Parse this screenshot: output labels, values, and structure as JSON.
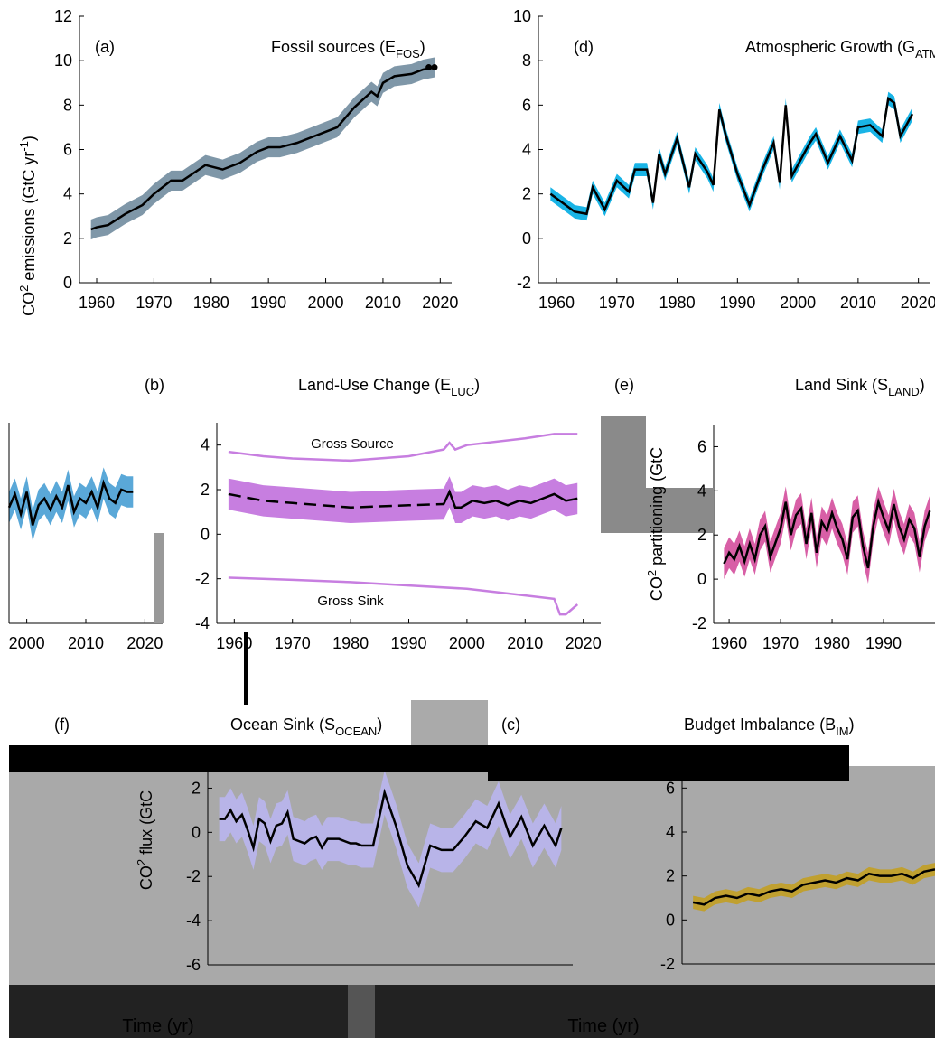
{
  "chart_data": [
    {
      "type": "line",
      "letter": "(a)",
      "title": [
        "Fossil sources (E",
        "FOS",
        ")"
      ],
      "ylabel": [
        "CO",
        "2",
        " emissions (GtC yr",
        "-1",
        ")"
      ],
      "xlim": [
        1957,
        2022
      ],
      "ylim": [
        0,
        12
      ],
      "xticks": [
        1960,
        1970,
        1980,
        1990,
        2000,
        2010,
        2020
      ],
      "yticks": [
        0,
        2,
        4,
        6,
        8,
        10,
        12
      ],
      "series": [
        {
          "color": "#000000",
          "band_color": "#7f97a8",
          "error": 0.45,
          "x": [
            1959,
            1960,
            1962,
            1965,
            1968,
            1970,
            1973,
            1975,
            1979,
            1982,
            1985,
            1988,
            1990,
            1992,
            1995,
            1998,
            2000,
            2002,
            2005,
            2008,
            2009,
            2010,
            2012,
            2015,
            2017,
            2019
          ],
          "values": [
            2.4,
            2.5,
            2.6,
            3.1,
            3.5,
            4.0,
            4.6,
            4.6,
            5.3,
            5.1,
            5.4,
            5.9,
            6.1,
            6.1,
            6.3,
            6.6,
            6.8,
            7.0,
            7.9,
            8.6,
            8.4,
            9.0,
            9.3,
            9.4,
            9.6,
            9.7
          ]
        },
        {
          "color": "#000000",
          "marker": true,
          "x": [
            2018,
            2019
          ],
          "values": [
            9.7,
            9.7
          ]
        }
      ]
    },
    {
      "type": "line",
      "letter": "(d)",
      "title": [
        "Atmospheric Growth (G",
        "ATM",
        ")"
      ],
      "xlim": [
        1957,
        2022
      ],
      "ylim": [
        -2,
        10
      ],
      "xticks": [
        1960,
        1970,
        1980,
        1990,
        2000,
        2010,
        2020
      ],
      "yticks": [
        -2,
        0,
        2,
        4,
        6,
        8,
        10
      ],
      "series": [
        {
          "color": "#000000",
          "band_color": "#19b4e6",
          "error": 0.3,
          "x": [
            1959,
            1961,
            1963,
            1965,
            1966,
            1968,
            1970,
            1972,
            1973,
            1975,
            1976,
            1977,
            1978,
            1980,
            1982,
            1983,
            1985,
            1986,
            1987,
            1988,
            1990,
            1992,
            1994,
            1996,
            1997,
            1998,
            1999,
            2001,
            2002,
            2003,
            2005,
            2007,
            2009,
            2010,
            2012,
            2014,
            2015,
            2016,
            2017,
            2019
          ],
          "values": [
            2.0,
            1.6,
            1.2,
            1.1,
            2.3,
            1.3,
            2.6,
            2.1,
            3.1,
            3.1,
            1.6,
            3.8,
            2.9,
            4.5,
            2.3,
            3.8,
            3.0,
            2.4,
            5.8,
            4.7,
            2.9,
            1.5,
            3.0,
            4.3,
            2.5,
            6.0,
            2.8,
            3.8,
            4.3,
            4.7,
            3.4,
            4.6,
            3.5,
            5.0,
            5.1,
            4.6,
            6.3,
            6.1,
            4.6,
            5.6
          ]
        }
      ]
    },
    {
      "type": "line",
      "letter": "(b)",
      "title": [
        "Land-Use Change (E",
        "LUC",
        ")"
      ],
      "xlim": [
        1997,
        2023
      ],
      "ylim": [
        -4,
        5
      ],
      "xticks": [
        2000,
        2010,
        2020
      ],
      "series": [
        {
          "color": "#000000",
          "band_color": "#5aa8d8",
          "error": 0.7,
          "x": [
            1997,
            1998,
            1999,
            2000,
            2001,
            2002,
            2003,
            2004,
            2005,
            2006,
            2007,
            2008,
            2009,
            2010,
            2011,
            2012,
            2013,
            2014,
            2015,
            2016,
            2017,
            2018
          ],
          "values": [
            1.2,
            1.8,
            0.9,
            1.9,
            0.4,
            1.3,
            1.6,
            1.1,
            1.7,
            1.2,
            2.2,
            1.0,
            1.6,
            1.4,
            1.9,
            1.2,
            2.3,
            1.6,
            1.4,
            2.0,
            1.9,
            1.9
          ]
        }
      ]
    },
    {
      "type": "line",
      "annotations": [
        "Gross Source",
        "Gross Sink"
      ],
      "xlim": [
        1957,
        2023
      ],
      "ylim": [
        -4,
        5
      ],
      "xticks": [
        1960,
        1970,
        1980,
        1990,
        2000,
        2010,
        2020
      ],
      "yticks": [
        -4,
        -2,
        0,
        2,
        4
      ],
      "series": [
        {
          "color": "#c77ee0",
          "x": [
            1959,
            1965,
            1970,
            1980,
            1990,
            1996,
            1997,
            1998,
            2000,
            2010,
            2015,
            2019
          ],
          "values": [
            3.7,
            3.5,
            3.4,
            3.3,
            3.5,
            3.8,
            4.1,
            3.8,
            4.0,
            4.3,
            4.5,
            4.5
          ]
        },
        {
          "color": "#000000",
          "dash": true,
          "band_color": "#c77ee0",
          "error": 0.7,
          "x": [
            1959,
            1965,
            1970,
            1980,
            1990,
            1996
          ],
          "values": [
            1.8,
            1.5,
            1.4,
            1.2,
            1.3,
            1.35
          ]
        },
        {
          "color": "#000000",
          "band_color": "#c77ee0",
          "error": 0.7,
          "x": [
            1996,
            1997,
            1998,
            1999,
            2001,
            2003,
            2005,
            2007,
            2009,
            2011,
            2013,
            2015,
            2017,
            2019
          ],
          "values": [
            1.35,
            1.9,
            1.2,
            1.2,
            1.5,
            1.4,
            1.5,
            1.3,
            1.5,
            1.4,
            1.6,
            1.8,
            1.5,
            1.6
          ]
        },
        {
          "color": "#c77ee0",
          "x": [
            1959,
            1970,
            1980,
            1990,
            2000,
            2010,
            2015,
            2016,
            2017,
            2019
          ],
          "values": [
            -1.95,
            -2.05,
            -2.15,
            -2.3,
            -2.45,
            -2.75,
            -2.9,
            -3.6,
            -3.6,
            -3.15
          ]
        }
      ]
    },
    {
      "type": "line",
      "letter": "(e)",
      "title": [
        "Land Sink (S",
        "LAND",
        ")"
      ],
      "ylabel": [
        "CO",
        "2",
        " partitioning (GtC"
      ],
      "xlim": [
        1957,
        2000
      ],
      "ylim": [
        -2,
        7
      ],
      "xticks": [
        1960,
        1970,
        1980,
        1990
      ],
      "yticks": [
        -2,
        0,
        2,
        4,
        6
      ],
      "series": [
        {
          "color": "#000000",
          "band_color": "#d85fa6",
          "error": 0.7,
          "x": [
            1959,
            1960,
            1961,
            1962,
            1963,
            1964,
            1965,
            1966,
            1967,
            1968,
            1970,
            1971,
            1972,
            1973,
            1974,
            1975,
            1976,
            1977,
            1978,
            1979,
            1980,
            1981,
            1982,
            1983,
            1984,
            1985,
            1986,
            1987,
            1988,
            1989,
            1990,
            1991,
            1992,
            1993,
            1994,
            1995,
            1996,
            1997,
            1998,
            1999
          ],
          "values": [
            0.7,
            1.2,
            0.9,
            1.5,
            0.8,
            1.6,
            0.9,
            2.0,
            2.4,
            1.0,
            2.3,
            3.5,
            2.0,
            2.9,
            3.2,
            1.6,
            3.0,
            1.2,
            2.6,
            2.2,
            3.0,
            2.3,
            1.8,
            0.9,
            2.8,
            3.1,
            1.5,
            0.5,
            2.4,
            3.5,
            2.8,
            2.2,
            3.4,
            2.4,
            1.8,
            2.7,
            2.3,
            1.0,
            2.4,
            3.1
          ]
        }
      ]
    },
    {
      "type": "line",
      "letter": "(f)",
      "title": [
        "Ocean Sink (S",
        "OCEAN",
        ")"
      ],
      "ylabel": [
        "CO",
        "2",
        " flux (GtC"
      ],
      "xlabel": "Time (yr)",
      "xlim": [
        1957,
        2021
      ],
      "ylim": [
        -6,
        3
      ],
      "yticks": [
        -6,
        -4,
        -2,
        0,
        2
      ],
      "series": [
        {
          "color": "#000000",
          "band_color": "#b8b4e8",
          "error": 1.0,
          "x": [
            1959,
            1960,
            1961,
            1962,
            1963,
            1964,
            1965,
            1966,
            1967,
            1968,
            1969,
            1970,
            1971,
            1972,
            1973,
            1974,
            1975,
            1976,
            1977,
            1978,
            1980,
            1982,
            1983,
            1984,
            1986,
            1988,
            1990,
            1992,
            1994,
            1996,
            1998,
            2000,
            2002,
            2004,
            2006,
            2008,
            2010,
            2012,
            2014,
            2016,
            2018,
            2019
          ],
          "values": [
            0.6,
            0.6,
            1.0,
            0.5,
            0.8,
            0.1,
            -0.7,
            0.6,
            0.4,
            -0.4,
            0.3,
            0.4,
            0.9,
            -0.3,
            -0.4,
            -0.5,
            -0.3,
            -0.2,
            -0.7,
            -0.3,
            -0.3,
            -0.5,
            -0.5,
            -0.6,
            -0.6,
            1.8,
            0.3,
            -1.5,
            -2.4,
            -0.6,
            -0.8,
            -0.8,
            -0.2,
            0.5,
            0.2,
            1.3,
            -0.2,
            0.7,
            -0.6,
            0.3,
            -0.6,
            0.2
          ]
        }
      ]
    },
    {
      "type": "line",
      "letter": "(c)",
      "title": [
        "Budget Imbalance (B",
        "IM",
        ")"
      ],
      "xlabel": "Time (yr)",
      "xlim": [
        1957,
        2003
      ],
      "ylim": [
        -2,
        7
      ],
      "yticks": [
        -2,
        0,
        2,
        4,
        6
      ],
      "series": [
        {
          "color": "#000000",
          "band_color": "#c0a030",
          "error": 0.3,
          "x": [
            1959,
            1961,
            1963,
            1965,
            1967,
            1969,
            1971,
            1973,
            1975,
            1977,
            1979,
            1981,
            1983,
            1985,
            1987,
            1989,
            1991,
            1993,
            1995,
            1997,
            1999,
            2001,
            2003
          ],
          "values": [
            0.8,
            0.7,
            1.0,
            1.1,
            1.0,
            1.2,
            1.1,
            1.3,
            1.4,
            1.3,
            1.6,
            1.7,
            1.8,
            1.7,
            1.9,
            1.8,
            2.1,
            2.0,
            2.0,
            2.1,
            1.9,
            2.2,
            2.3
          ]
        }
      ]
    }
  ]
}
